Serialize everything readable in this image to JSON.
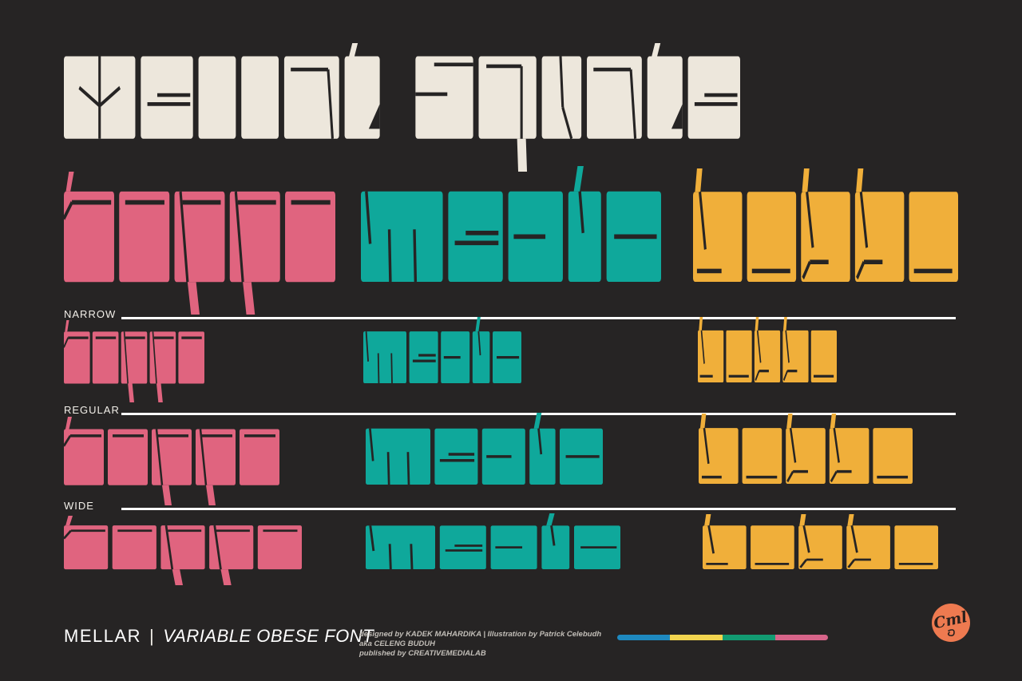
{
  "title": {
    "text": "Mellar Square"
  },
  "showcase_words": [
    {
      "id": "toppo",
      "text": "toppo",
      "color_key": "pink"
    },
    {
      "id": "media",
      "text": "media",
      "color_key": "teal"
    },
    {
      "id": "botto",
      "text": "botto",
      "color_key": "yellow"
    }
  ],
  "weight_sections": [
    {
      "id": "narrow",
      "label": "NARROW"
    },
    {
      "id": "regular",
      "label": "REGULAR"
    },
    {
      "id": "wide",
      "label": "WIDE"
    }
  ],
  "footer": {
    "font_name": "MELLAR",
    "separator": "|",
    "tagline": "VARIABLE OBESE FONT",
    "credit_line1": "designed by KADEK MAHARDIKA | Illustration by Patrick Celebudh aka CELENG BUDUH",
    "credit_line2": "published by CREATIVEMEDIALAB",
    "logo_monogram": "Cml"
  },
  "colors": {
    "background": "#262424",
    "cream": "#EDE7DC",
    "pink": "#E0647F",
    "teal": "#0FA89B",
    "yellow": "#F0AF3A",
    "line_white": "#FFFFFF",
    "logo_orange": "#EE7A50",
    "logo_ink": "#2B201C",
    "swatch_bar": [
      "#1E89C0",
      "#F2D44F",
      "#129B72",
      "#D76489"
    ]
  }
}
